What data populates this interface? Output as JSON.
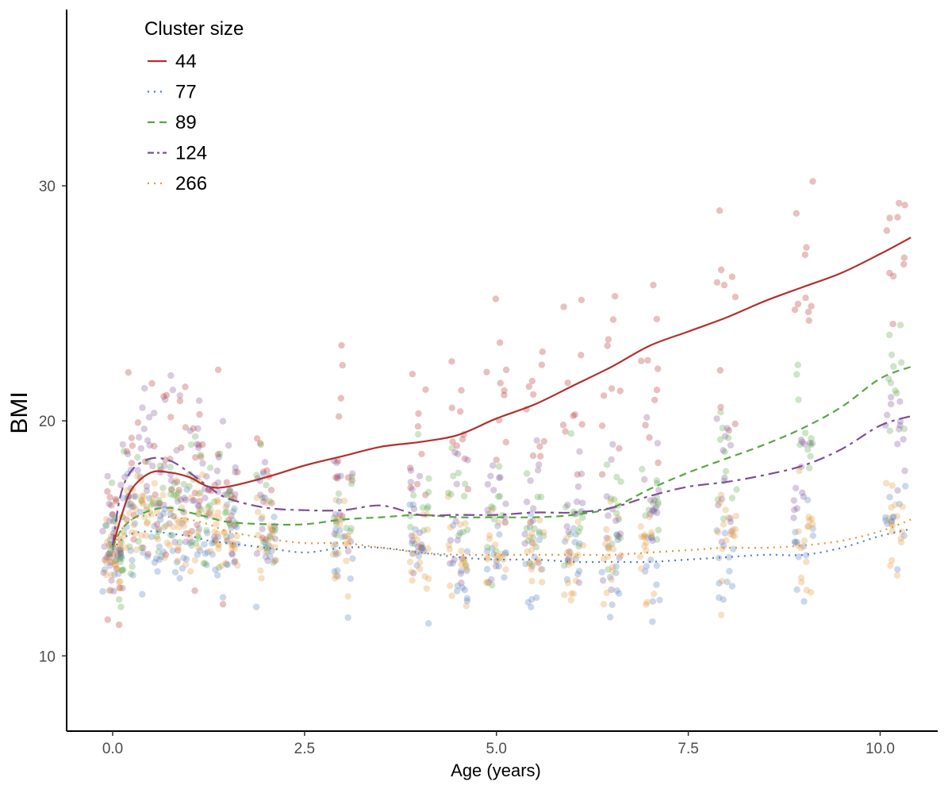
{
  "chart_data": {
    "type": "scatter",
    "xlabel": "Age (years)",
    "ylabel": "BMI",
    "xlim": [
      -0.6,
      10.75
    ],
    "ylim": [
      6.8,
      37.5
    ],
    "x_ticks": [
      0.0,
      2.5,
      5.0,
      7.5,
      10.0
    ],
    "x_tick_labels": [
      "0.0",
      "2.5",
      "5.0",
      "7.5",
      "10.0"
    ],
    "y_ticks": [
      10,
      20,
      30
    ],
    "y_tick_labels": [
      "10",
      "20",
      "30"
    ],
    "grid": false,
    "legend": {
      "title": "Cluster size",
      "position": "top-left"
    },
    "series": [
      {
        "name": "44",
        "color": "#b2302b",
        "dash": "solid",
        "x": [
          0.0,
          0.1,
          0.25,
          0.5,
          0.75,
          1.0,
          1.25,
          1.5,
          2.0,
          2.5,
          3.0,
          3.5,
          4.0,
          4.5,
          5.0,
          5.5,
          6.0,
          6.5,
          7.0,
          7.5,
          8.0,
          8.5,
          9.0,
          9.5,
          10.0,
          10.4
        ],
        "y": [
          14.6,
          15.8,
          17.1,
          17.8,
          17.8,
          17.6,
          17.2,
          17.2,
          17.6,
          18.1,
          18.5,
          18.9,
          19.1,
          19.4,
          20.1,
          20.7,
          21.5,
          22.3,
          23.2,
          23.8,
          24.4,
          25.1,
          25.7,
          26.3,
          27.1,
          27.8
        ]
      },
      {
        "name": "77",
        "color": "#4e7fbd",
        "dash": "dotted",
        "x": [
          0.0,
          0.1,
          0.25,
          0.5,
          0.75,
          1.0,
          1.25,
          1.5,
          2.0,
          2.5,
          3.0,
          3.5,
          4.0,
          4.5,
          5.0,
          5.5,
          6.0,
          6.5,
          7.0,
          7.5,
          8.0,
          8.5,
          9.0,
          9.5,
          10.0,
          10.4
        ],
        "y": [
          14.5,
          14.9,
          15.2,
          15.3,
          15.2,
          15.1,
          14.9,
          14.8,
          14.6,
          14.4,
          14.6,
          14.6,
          14.4,
          14.2,
          14.1,
          14.1,
          14.0,
          14.0,
          14.0,
          14.1,
          14.2,
          14.3,
          14.3,
          14.6,
          15.1,
          15.4
        ]
      },
      {
        "name": "89",
        "color": "#5aa546",
        "dash": "dashed",
        "x": [
          0.0,
          0.1,
          0.25,
          0.5,
          0.75,
          1.0,
          1.25,
          1.5,
          2.0,
          2.5,
          3.0,
          3.5,
          4.0,
          4.5,
          5.0,
          5.5,
          6.0,
          6.5,
          7.0,
          7.5,
          8.0,
          8.5,
          9.0,
          9.5,
          10.0,
          10.4
        ],
        "y": [
          14.6,
          15.3,
          15.8,
          16.2,
          16.3,
          16.1,
          15.9,
          15.7,
          15.6,
          15.6,
          15.8,
          15.9,
          16.0,
          15.9,
          15.9,
          15.9,
          16.0,
          16.3,
          17.1,
          17.8,
          18.4,
          19.0,
          19.7,
          20.6,
          21.8,
          22.3
        ]
      },
      {
        "name": "124",
        "color": "#7e4f95",
        "dash": "longdash",
        "x": [
          0.0,
          0.1,
          0.25,
          0.5,
          0.75,
          1.0,
          1.25,
          1.5,
          2.0,
          2.5,
          3.0,
          3.5,
          4.0,
          4.5,
          5.0,
          5.5,
          6.0,
          6.5,
          7.0,
          7.5,
          8.0,
          8.5,
          9.0,
          9.5,
          10.0,
          10.4
        ],
        "y": [
          14.7,
          16.8,
          17.9,
          18.4,
          18.3,
          17.8,
          17.2,
          16.7,
          16.3,
          16.2,
          16.2,
          16.4,
          16.0,
          16.0,
          16.0,
          16.1,
          16.1,
          16.3,
          16.8,
          17.2,
          17.4,
          17.7,
          18.1,
          18.8,
          19.8,
          20.2
        ]
      },
      {
        "name": "266",
        "color": "#e0973a",
        "dash": "dotted",
        "x": [
          0.0,
          0.1,
          0.25,
          0.5,
          0.75,
          1.0,
          1.25,
          1.5,
          2.0,
          2.5,
          3.0,
          3.5,
          4.0,
          4.5,
          5.0,
          5.5,
          6.0,
          6.5,
          7.0,
          7.5,
          8.0,
          8.5,
          9.0,
          9.5,
          10.0,
          10.4
        ],
        "y": [
          14.4,
          15.3,
          15.8,
          16.0,
          15.9,
          15.8,
          15.6,
          15.3,
          15.0,
          14.8,
          14.8,
          14.6,
          14.4,
          14.3,
          14.3,
          14.3,
          14.3,
          14.3,
          14.4,
          14.5,
          14.6,
          14.6,
          14.7,
          14.9,
          15.3,
          15.8
        ]
      }
    ]
  }
}
